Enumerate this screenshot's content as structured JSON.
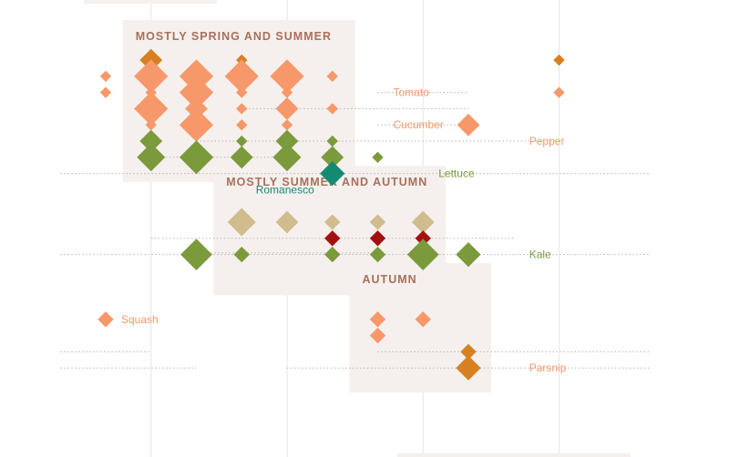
{
  "chart_data": {
    "type": "scatter",
    "colors": {
      "panel": "#f5f0ee",
      "guide": "#b5b5b5",
      "vgrid": "#e6e6e6",
      "orange": "#f7986a",
      "amber": "#d68022",
      "green": "#7a9a3c",
      "teal": "#148a73",
      "tan": "#d0bc8c",
      "red": "#a31010"
    },
    "columns": 13,
    "rows": 22,
    "groups": [
      {
        "title": "MOSTLY SPRING AND SUMMER",
        "col_from": 1,
        "col_to": 5,
        "row_from": 0,
        "row_to": 6
      },
      {
        "title": "MOSTLY SUMMER AND AUTUMN",
        "col_from": 3,
        "col_to": 7,
        "row_from": 9,
        "row_to": 13
      },
      {
        "title": "AUTUMN",
        "col_from": 6,
        "col_to": 8,
        "row_from": 15,
        "row_to": 19
      }
    ],
    "labels": [
      {
        "text": "Tomato",
        "row": 2,
        "col": 6,
        "color": "orange"
      },
      {
        "text": "Cucumber",
        "row": 4,
        "col": 6,
        "color": "orange"
      },
      {
        "text": "Pepper",
        "row": 5,
        "col": 9,
        "color": "orange"
      },
      {
        "text": "Lettuce",
        "row": 7,
        "col": 7,
        "color": "green"
      },
      {
        "text": "Romanesco",
        "row": 8,
        "col": 5,
        "color": "teal",
        "anchor": "end"
      },
      {
        "text": "Kale",
        "row": 12,
        "col": 9,
        "color": "green"
      },
      {
        "text": "Squash",
        "row": 16,
        "col": 0,
        "color": "orange"
      },
      {
        "text": "Parsnip",
        "row": 19,
        "col": 9,
        "color": "orange"
      }
    ],
    "guides": [
      {
        "row": 2,
        "col_from": 6,
        "col_to": 8
      },
      {
        "row": 3,
        "col_from": 3,
        "col_to": 8
      },
      {
        "row": 4,
        "col_from": 6,
        "col_to": 8
      },
      {
        "row": 5,
        "col_from": 2,
        "col_to": 9
      },
      {
        "row": 5,
        "col_from": 9,
        "col_to": 9.9
      },
      {
        "row": 6,
        "col_from": 1,
        "col_to": 4
      },
      {
        "row": 7,
        "col_from": -1,
        "col_to": 12
      },
      {
        "row": 11,
        "col_from": 1,
        "col_to": 9
      },
      {
        "row": 11.9,
        "col_from": 2,
        "col_to": 6
      },
      {
        "row": 12,
        "col_from": -1,
        "col_to": 12
      },
      {
        "row": 18,
        "col_from": -1,
        "col_to": 1
      },
      {
        "row": 18,
        "col_from": 6,
        "col_to": 12
      },
      {
        "row": 19,
        "col_from": -1,
        "col_to": 2
      },
      {
        "row": 19,
        "col_from": 4,
        "col_to": 12
      }
    ],
    "points": [
      {
        "row": 0,
        "col": 1,
        "size": 2,
        "color": "amber"
      },
      {
        "row": 0,
        "col": 3,
        "size": 1,
        "color": "amber"
      },
      {
        "row": 0,
        "col": 10,
        "size": 1,
        "color": "amber"
      },
      {
        "row": 1,
        "col": 0,
        "size": 1,
        "color": "orange"
      },
      {
        "row": 1,
        "col": 1,
        "size": 3,
        "color": "orange"
      },
      {
        "row": 1,
        "col": 2,
        "size": 3,
        "color": "orange"
      },
      {
        "row": 1,
        "col": 3,
        "size": 3,
        "color": "orange"
      },
      {
        "row": 1,
        "col": 4,
        "size": 3,
        "color": "orange"
      },
      {
        "row": 1,
        "col": 5,
        "size": 1,
        "color": "orange"
      },
      {
        "row": 2,
        "col": 0,
        "size": 1,
        "color": "orange"
      },
      {
        "row": 2,
        "col": 1,
        "size": 1,
        "color": "orange"
      },
      {
        "row": 2,
        "col": 2,
        "size": 3,
        "color": "orange"
      },
      {
        "row": 2,
        "col": 3,
        "size": 1,
        "color": "orange"
      },
      {
        "row": 2,
        "col": 4,
        "size": 1,
        "color": "orange"
      },
      {
        "row": 2,
        "col": 10,
        "size": 1,
        "color": "orange"
      },
      {
        "row": 3,
        "col": 1,
        "size": 3,
        "color": "orange"
      },
      {
        "row": 3,
        "col": 2,
        "size": 2,
        "color": "orange"
      },
      {
        "row": 3,
        "col": 3,
        "size": 1,
        "color": "orange"
      },
      {
        "row": 3,
        "col": 4,
        "size": 2,
        "color": "orange"
      },
      {
        "row": 3,
        "col": 5,
        "size": 1,
        "color": "orange"
      },
      {
        "row": 4,
        "col": 1,
        "size": 1,
        "color": "orange"
      },
      {
        "row": 4,
        "col": 2,
        "size": 3,
        "color": "orange"
      },
      {
        "row": 4,
        "col": 3,
        "size": 1,
        "color": "orange"
      },
      {
        "row": 4,
        "col": 4,
        "size": 1,
        "color": "orange"
      },
      {
        "row": 4,
        "col": 8,
        "size": 2,
        "color": "orange"
      },
      {
        "row": 5,
        "col": 1,
        "size": 2,
        "color": "green"
      },
      {
        "row": 5,
        "col": 3,
        "size": 1,
        "color": "green"
      },
      {
        "row": 5,
        "col": 4,
        "size": 2,
        "color": "green"
      },
      {
        "row": 5,
        "col": 5,
        "size": 1,
        "color": "green"
      },
      {
        "row": 6,
        "col": 1,
        "size": 2.5,
        "color": "green"
      },
      {
        "row": 6,
        "col": 2,
        "size": 3,
        "color": "green"
      },
      {
        "row": 6,
        "col": 3,
        "size": 2,
        "color": "green"
      },
      {
        "row": 6,
        "col": 4,
        "size": 2.5,
        "color": "green"
      },
      {
        "row": 6,
        "col": 5,
        "size": 2,
        "color": "green"
      },
      {
        "row": 6,
        "col": 6,
        "size": 1,
        "color": "green"
      },
      {
        "row": 7,
        "col": 5,
        "size": 2.2,
        "color": "teal"
      },
      {
        "row": 10,
        "col": 3,
        "size": 2.5,
        "color": "tan"
      },
      {
        "row": 10,
        "col": 4,
        "size": 2,
        "color": "tan"
      },
      {
        "row": 10,
        "col": 5,
        "size": 1.4,
        "color": "tan"
      },
      {
        "row": 10,
        "col": 6,
        "size": 1.4,
        "color": "tan"
      },
      {
        "row": 10,
        "col": 7,
        "size": 2,
        "color": "tan"
      },
      {
        "row": 11,
        "col": 5,
        "size": 1.4,
        "color": "red"
      },
      {
        "row": 11,
        "col": 6,
        "size": 1.4,
        "color": "red"
      },
      {
        "row": 11,
        "col": 7,
        "size": 1.4,
        "color": "red"
      },
      {
        "row": 12,
        "col": 2,
        "size": 2.8,
        "color": "green"
      },
      {
        "row": 12,
        "col": 3,
        "size": 1.4,
        "color": "green"
      },
      {
        "row": 12,
        "col": 5,
        "size": 1.4,
        "color": "green"
      },
      {
        "row": 12,
        "col": 6,
        "size": 1.4,
        "color": "green"
      },
      {
        "row": 12,
        "col": 7,
        "size": 2.8,
        "color": "green"
      },
      {
        "row": 12,
        "col": 8,
        "size": 2.2,
        "color": "green"
      },
      {
        "row": 16,
        "col": 0,
        "size": 1.4,
        "color": "orange"
      },
      {
        "row": 16,
        "col": 6,
        "size": 1.4,
        "color": "orange"
      },
      {
        "row": 16,
        "col": 7,
        "size": 1.4,
        "color": "orange"
      },
      {
        "row": 17,
        "col": 6,
        "size": 1.4,
        "color": "orange"
      },
      {
        "row": 18,
        "col": 8,
        "size": 1.4,
        "color": "amber"
      },
      {
        "row": 19,
        "col": 8,
        "size": 2.2,
        "color": "amber"
      }
    ]
  }
}
